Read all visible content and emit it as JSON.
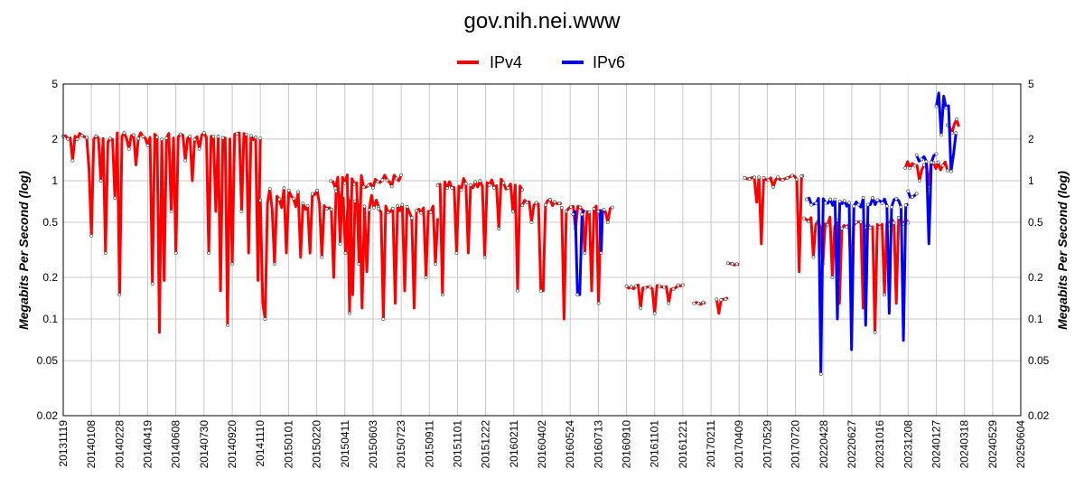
{
  "chart_data": {
    "type": "line",
    "title": "gov.nih.nei.www",
    "ylabel": "Megabits Per Second (log)",
    "ylabel_right": "Megabits Per Second (log)",
    "yscale": "log",
    "ylim": [
      0.02,
      5
    ],
    "yticks": [
      {
        "value": 5,
        "label": "5"
      },
      {
        "value": 2,
        "label": "2"
      },
      {
        "value": 1,
        "label": "1"
      },
      {
        "value": 0.5,
        "label": "0.5"
      },
      {
        "value": 0.2,
        "label": "0.2"
      },
      {
        "value": 0.1,
        "label": "0.1"
      },
      {
        "value": 0.05,
        "label": "0.05"
      },
      {
        "value": 0.02,
        "label": "0.02"
      }
    ],
    "xticks": [
      "20131119",
      "20140108",
      "20140228",
      "20140419",
      "20140608",
      "20140730",
      "20140920",
      "20141110",
      "20150101",
      "20150220",
      "20150411",
      "20150603",
      "20150723",
      "20150911",
      "20151101",
      "20151222",
      "20160211",
      "20160402",
      "20160524",
      "20160713",
      "20160910",
      "20161101",
      "20161221",
      "20170211",
      "20170409",
      "20170529",
      "20170720",
      "20220428",
      "20220627",
      "20231016",
      "20231208",
      "20240127",
      "20240318",
      "20240529",
      "20250604"
    ],
    "grid": true,
    "legend_position": "top-center",
    "series": [
      {
        "name": "IPv4",
        "color": "#ff0000",
        "segments": [
          {
            "x0": 0,
            "x1": 7,
            "base": 2.1,
            "jitter": 0.06,
            "dips": [
              [
                0.3,
                1.4
              ],
              [
                0.9,
                1.2
              ],
              [
                1.0,
                0.4
              ],
              [
                1.3,
                1.0
              ],
              [
                1.5,
                0.3
              ],
              [
                1.6,
                1.9
              ],
              [
                1.8,
                0.75
              ],
              [
                2.0,
                0.15
              ],
              [
                2.3,
                1.7
              ],
              [
                2.6,
                1.3
              ],
              [
                3.0,
                1.8
              ],
              [
                3.2,
                0.18
              ],
              [
                3.4,
                0.08
              ],
              [
                3.6,
                0.19
              ],
              [
                3.8,
                0.6
              ],
              [
                4.0,
                0.3
              ],
              [
                4.3,
                1.4
              ],
              [
                4.6,
                1.0
              ],
              [
                4.8,
                1.7
              ],
              [
                5.2,
                0.3
              ],
              [
                5.4,
                0.6
              ],
              [
                5.6,
                0.16
              ],
              [
                5.8,
                0.09
              ],
              [
                6.0,
                0.25
              ],
              [
                6.3,
                0.6
              ],
              [
                6.6,
                0.3
              ],
              [
                6.9,
                0.19
              ]
            ]
          },
          {
            "x0": 7,
            "x1": 11.2,
            "base": 0.75,
            "jitter": 0.18,
            "dips": [
              [
                7.1,
                0.13
              ],
              [
                7.2,
                0.1
              ],
              [
                7.5,
                0.25
              ],
              [
                7.9,
                0.3
              ],
              [
                8.4,
                0.28
              ],
              [
                8.8,
                0.3
              ],
              [
                9.2,
                0.28
              ],
              [
                9.6,
                0.2
              ],
              [
                10.0,
                0.3
              ],
              [
                10.3,
                0.15
              ],
              [
                10.6,
                0.12
              ],
              [
                10.8,
                0.22
              ]
            ]
          },
          {
            "x0": 9.5,
            "x1": 12.0,
            "base": 1.0,
            "jitter": 0.12,
            "dips": [
              [
                9.8,
                0.35
              ],
              [
                10.2,
                0.11
              ],
              [
                10.5,
                0.25
              ]
            ]
          },
          {
            "x0": 11.2,
            "x1": 13.3,
            "base": 0.6,
            "jitter": 0.12,
            "dips": [
              [
                11.4,
                0.1
              ],
              [
                11.8,
                0.13
              ],
              [
                12.1,
                0.16
              ],
              [
                12.5,
                0.12
              ],
              [
                12.9,
                0.2
              ],
              [
                13.2,
                0.25
              ]
            ]
          },
          {
            "x0": 13.3,
            "x1": 16.3,
            "base": 0.95,
            "jitter": 0.1,
            "dips": [
              [
                13.5,
                0.15
              ],
              [
                14.0,
                0.3
              ],
              [
                14.4,
                0.3
              ],
              [
                15.0,
                0.28
              ],
              [
                15.5,
                0.45
              ],
              [
                16.0,
                0.6
              ],
              [
                16.1,
                0.16
              ]
            ]
          },
          {
            "x0": 16.3,
            "x1": 17.7,
            "base": 0.7,
            "jitter": 0.06,
            "dips": [
              [
                16.6,
                0.5
              ],
              [
                17.0,
                0.16
              ]
            ]
          },
          {
            "x0": 17.7,
            "x1": 19.5,
            "base": 0.62,
            "jitter": 0.06,
            "dips": [
              [
                17.8,
                0.1
              ],
              [
                18.2,
                0.45
              ],
              [
                18.5,
                0.3
              ],
              [
                18.8,
                0.16
              ],
              [
                19.0,
                0.13
              ],
              [
                19.3,
                0.5
              ]
            ]
          },
          {
            "x0": 20.0,
            "x1": 22.0,
            "base": 0.17,
            "jitter": 0.04,
            "dips": [
              [
                20.5,
                0.12
              ],
              [
                21.0,
                0.11
              ],
              [
                21.5,
                0.13
              ]
            ]
          },
          {
            "x0": 22.4,
            "x1": 22.8,
            "base": 0.13,
            "jitter": 0.02,
            "dips": []
          },
          {
            "x0": 23.2,
            "x1": 23.6,
            "base": 0.14,
            "jitter": 0.02,
            "dips": [
              [
                23.3,
                0.11
              ]
            ]
          },
          {
            "x0": 23.6,
            "x1": 24.0,
            "base": 0.25,
            "jitter": 0.02,
            "dips": []
          },
          {
            "x0": 24.2,
            "x1": 26.3,
            "base": 1.05,
            "jitter": 0.04,
            "dips": [
              [
                24.6,
                0.7
              ],
              [
                24.8,
                0.35
              ],
              [
                25.2,
                0.9
              ],
              [
                26.1,
                0.22
              ]
            ]
          },
          {
            "x0": 26.3,
            "x1": 30.0,
            "base": 0.5,
            "jitter": 0.1,
            "dips": [
              [
                26.6,
                0.28
              ],
              [
                27.0,
                0.25
              ],
              [
                27.3,
                0.2
              ],
              [
                27.6,
                0.13
              ],
              [
                28.0,
                0.2
              ],
              [
                28.4,
                0.12
              ],
              [
                28.8,
                0.08
              ],
              [
                29.2,
                0.15
              ],
              [
                29.6,
                0.13
              ]
            ]
          },
          {
            "x0": 29.9,
            "x1": 31.4,
            "base": 1.3,
            "jitter": 0.1,
            "dips": [
              [
                30.4,
                1.0
              ],
              [
                30.7,
                0.9
              ]
            ]
          },
          {
            "x0": 31.4,
            "x1": 31.8,
            "base": 2.6,
            "jitter": 0.15,
            "dips": []
          }
        ]
      },
      {
        "name": "IPv6",
        "color": "#0000ff",
        "segments": [
          {
            "x0": 18.1,
            "x1": 18.5,
            "base": 0.6,
            "jitter": 0.05,
            "dips": [
              [
                18.3,
                0.15
              ]
            ]
          },
          {
            "x0": 19.0,
            "x1": 19.2,
            "base": 0.6,
            "jitter": 0.03,
            "dips": [
              [
                19.1,
                0.3
              ]
            ]
          },
          {
            "x0": 26.4,
            "x1": 30.0,
            "base": 0.7,
            "jitter": 0.08,
            "dips": [
              [
                26.9,
                0.04
              ],
              [
                27.5,
                0.1
              ],
              [
                28.0,
                0.06
              ],
              [
                28.5,
                0.09
              ],
              [
                29.3,
                0.11
              ],
              [
                29.8,
                0.07
              ]
            ]
          },
          {
            "x0": 30.0,
            "x1": 30.3,
            "base": 0.8,
            "jitter": 0.05,
            "dips": []
          },
          {
            "x0": 30.3,
            "x1": 31.0,
            "base": 1.5,
            "jitter": 0.1,
            "dips": [
              [
                30.7,
                0.35
              ]
            ]
          },
          {
            "x0": 31.0,
            "x1": 31.7,
            "base": 2.8,
            "jitter": 0.6,
            "dips": []
          }
        ]
      }
    ]
  }
}
